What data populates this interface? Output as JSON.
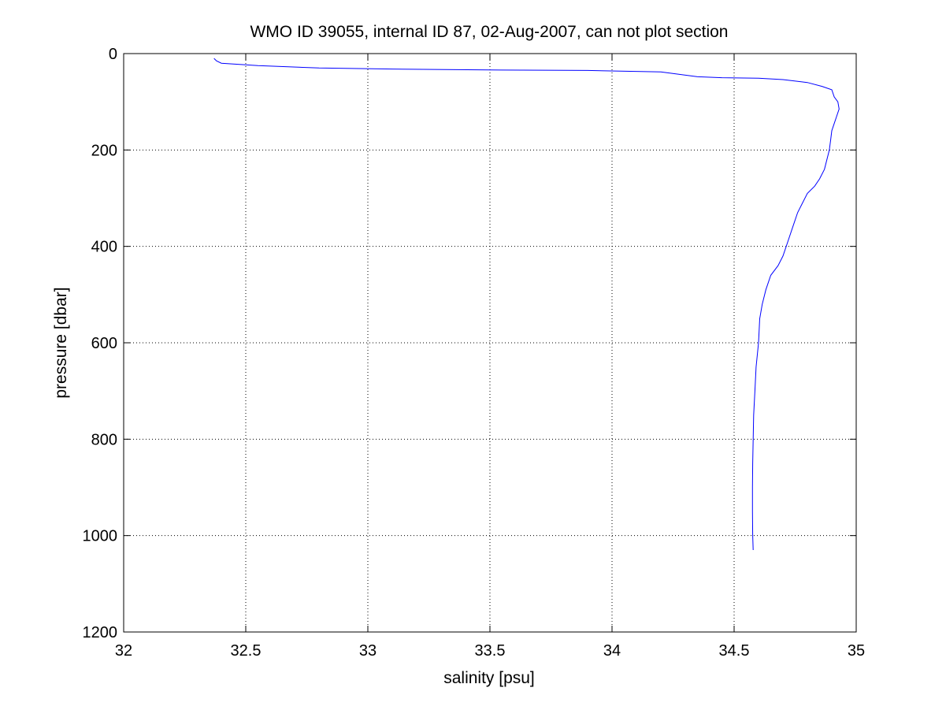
{
  "chart_data": {
    "type": "line",
    "title": "WMO ID 39055, internal ID 87, 02-Aug-2007, can not plot section",
    "xlabel": "salinity [psu]",
    "ylabel": "pressure [dbar]",
    "xlim": [
      32,
      35
    ],
    "ylim": [
      0,
      1200
    ],
    "y_reversed": true,
    "grid": true,
    "grid_style": "dotted",
    "x_ticks": [
      32,
      32.5,
      33,
      33.5,
      34,
      34.5,
      35
    ],
    "x_tick_labels": [
      "32",
      "32.5",
      "33",
      "33.5",
      "34",
      "34.5",
      "35"
    ],
    "y_ticks": [
      0,
      200,
      400,
      600,
      800,
      1000,
      1200
    ],
    "y_tick_labels": [
      "0",
      "200",
      "400",
      "600",
      "800",
      "1000",
      "1200"
    ],
    "series": [
      {
        "color": "#0000ff",
        "x": [
          32.37,
          32.38,
          32.4,
          32.55,
          32.8,
          33.1,
          33.5,
          33.9,
          34.2,
          34.35,
          34.45,
          34.6,
          34.7,
          34.8,
          34.86,
          34.9,
          34.91,
          34.925,
          34.93,
          34.92,
          34.91,
          34.9,
          34.895,
          34.89,
          34.87,
          34.85,
          34.83,
          34.8,
          34.78,
          34.76,
          34.74,
          34.72,
          34.7,
          34.68,
          34.65,
          34.63,
          34.615,
          34.605,
          34.6,
          34.59,
          34.585,
          34.58,
          34.578,
          34.576,
          34.575,
          34.575,
          34.576,
          34.578
        ],
        "y": [
          10,
          15,
          20,
          25,
          30,
          32,
          34,
          35,
          38,
          48,
          50,
          51,
          54,
          60,
          68,
          75,
          90,
          100,
          115,
          130,
          145,
          160,
          180,
          200,
          240,
          260,
          275,
          290,
          310,
          330,
          360,
          390,
          420,
          440,
          460,
          490,
          520,
          550,
          600,
          650,
          700,
          750,
          800,
          850,
          900,
          950,
          1000,
          1030
        ]
      }
    ]
  }
}
